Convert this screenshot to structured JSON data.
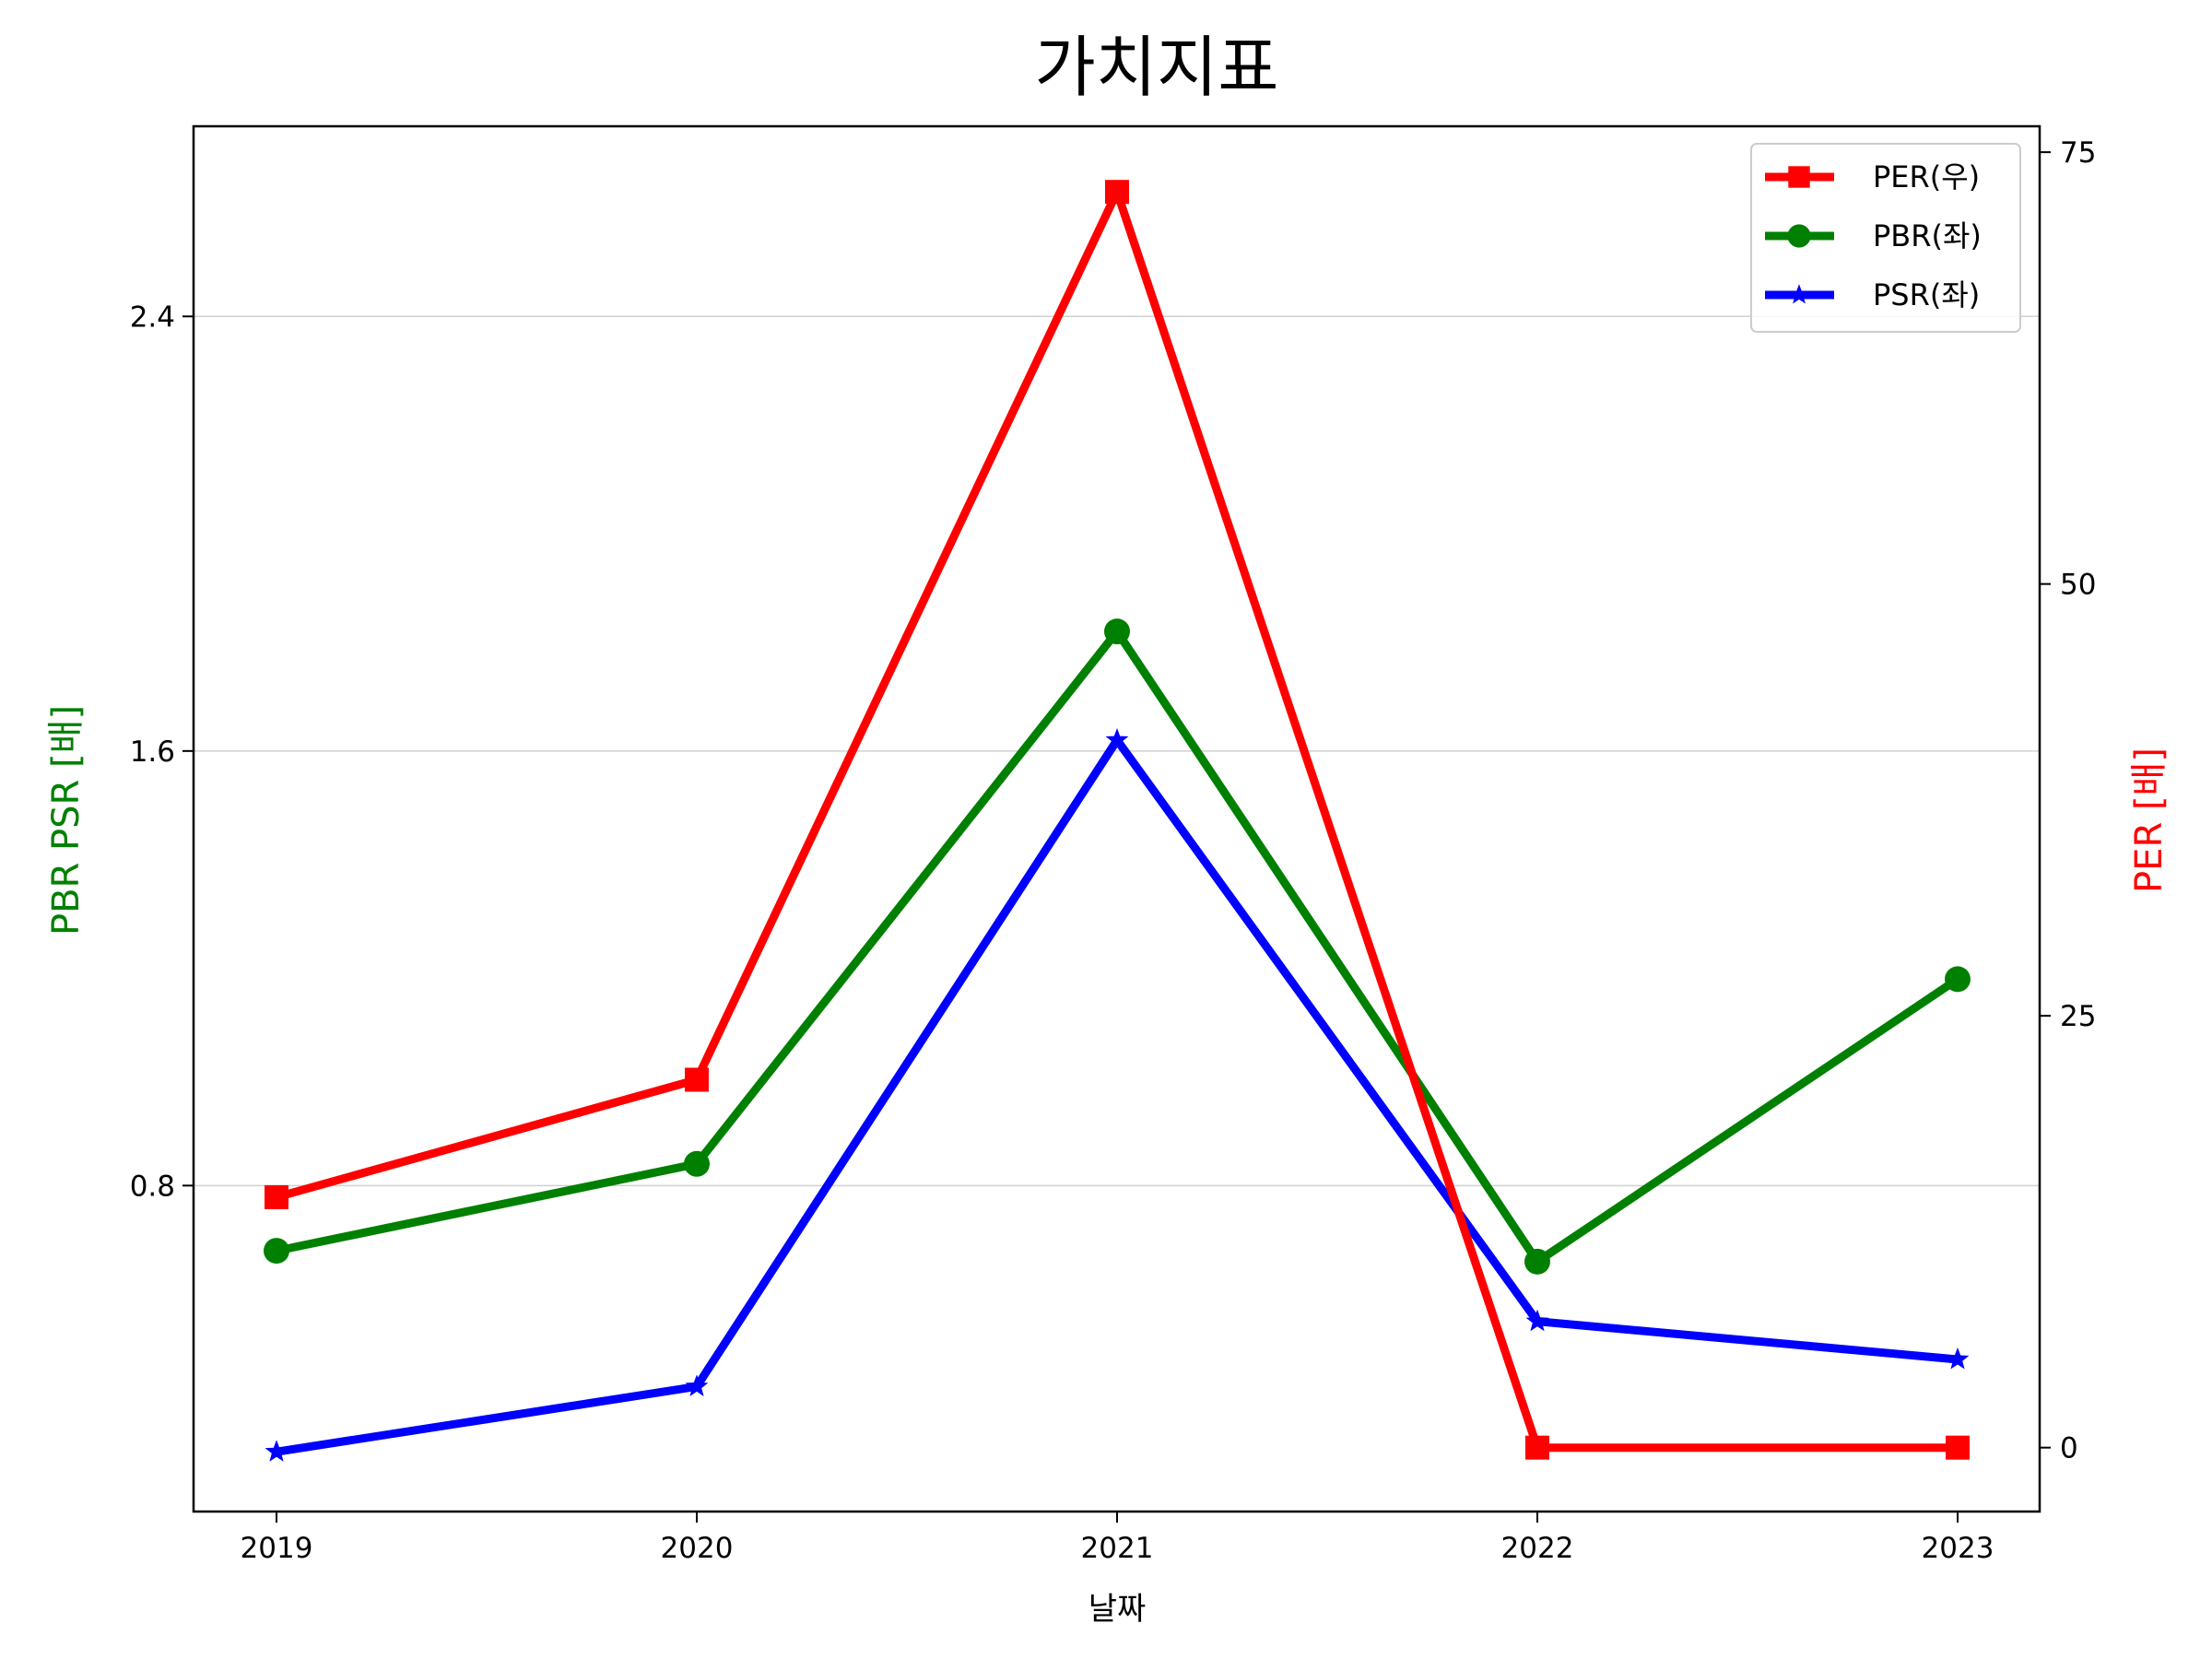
{
  "chart_data": {
    "type": "line",
    "title": "가치지표",
    "xlabel": "날짜",
    "ylabel_left": "PBR PSR [배]",
    "ylabel_right": "PER [배]",
    "categories": [
      "2019",
      "2020",
      "2021",
      "2022",
      "2023"
    ],
    "left_axis": {
      "ylim": [
        0.2,
        2.75
      ],
      "ticks": [
        0.8,
        1.6,
        2.4
      ],
      "tick_labels": [
        "0.8",
        "1.6",
        "2.4"
      ],
      "label_color": "#008000"
    },
    "right_axis": {
      "ylim": [
        -3.7,
        76.5
      ],
      "ticks": [
        0,
        25,
        50,
        75
      ],
      "tick_labels": [
        "0",
        "25",
        "50",
        "75"
      ],
      "label_color": "#ff0000"
    },
    "grid": {
      "horizontal": true,
      "axis": "left"
    },
    "legend": {
      "placement": "top-right"
    },
    "series": [
      {
        "name": "PER(우)",
        "axis": "right",
        "color": "#ff0000",
        "marker": "square",
        "values": [
          14.5,
          21.3,
          72.7,
          0,
          0
        ]
      },
      {
        "name": "PBR(좌)",
        "axis": "left",
        "color": "#008000",
        "marker": "circle",
        "values": [
          0.68,
          0.84,
          1.82,
          0.66,
          1.18
        ]
      },
      {
        "name": "PSR(좌)",
        "axis": "left",
        "color": "#0000ff",
        "marker": "star",
        "values": [
          0.31,
          0.43,
          1.62,
          0.55,
          0.48
        ]
      }
    ]
  }
}
